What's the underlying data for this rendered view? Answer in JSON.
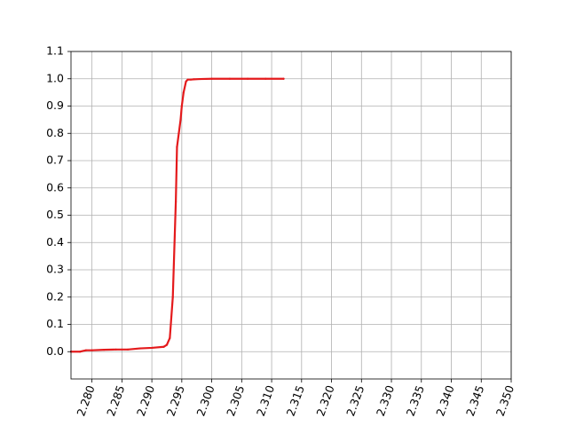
{
  "chart_data": {
    "type": "line",
    "title": "",
    "xlabel": "",
    "ylabel": "",
    "xlim": [
      2.2765,
      2.35
    ],
    "ylim": [
      -0.1,
      1.1
    ],
    "grid": true,
    "xticks": [
      2.28,
      2.285,
      2.29,
      2.295,
      2.3,
      2.305,
      2.31,
      2.315,
      2.32,
      2.325,
      2.33,
      2.335,
      2.34,
      2.345,
      2.35
    ],
    "xtick_labels": [
      "2.280",
      "2.285",
      "2.290",
      "2.295",
      "2.300",
      "2.305",
      "2.310",
      "2.315",
      "2.320",
      "2.325",
      "2.330",
      "2.335",
      "2.340",
      "2.345",
      "2.350"
    ],
    "yticks": [
      0.0,
      0.1,
      0.2,
      0.3,
      0.4,
      0.5,
      0.6,
      0.7,
      0.8,
      0.9,
      1.0,
      1.1
    ],
    "ytick_labels": [
      "0.0",
      "0.1",
      "0.2",
      "0.3",
      "0.4",
      "0.5",
      "0.6",
      "0.7",
      "0.8",
      "0.9",
      "1.0",
      "1.1"
    ],
    "series": [
      {
        "color": "#e41a1c",
        "x": [
          2.2765,
          2.278,
          2.279,
          2.28,
          2.282,
          2.284,
          2.286,
          2.288,
          2.29,
          2.292,
          2.2925,
          2.293,
          2.2935,
          2.294,
          2.2942,
          2.2945,
          2.2948,
          2.295,
          2.2953,
          2.2957,
          2.296,
          2.2965,
          2.297,
          2.298,
          2.3,
          2.303,
          2.306,
          2.309,
          2.312
        ],
        "y": [
          0.0,
          0.0,
          0.005,
          0.005,
          0.007,
          0.008,
          0.008,
          0.012,
          0.014,
          0.018,
          0.025,
          0.05,
          0.2,
          0.55,
          0.75,
          0.8,
          0.85,
          0.9,
          0.95,
          0.99,
          0.997,
          0.997,
          0.998,
          0.999,
          1.0,
          1.0,
          1.0,
          1.0,
          1.0
        ]
      }
    ]
  }
}
